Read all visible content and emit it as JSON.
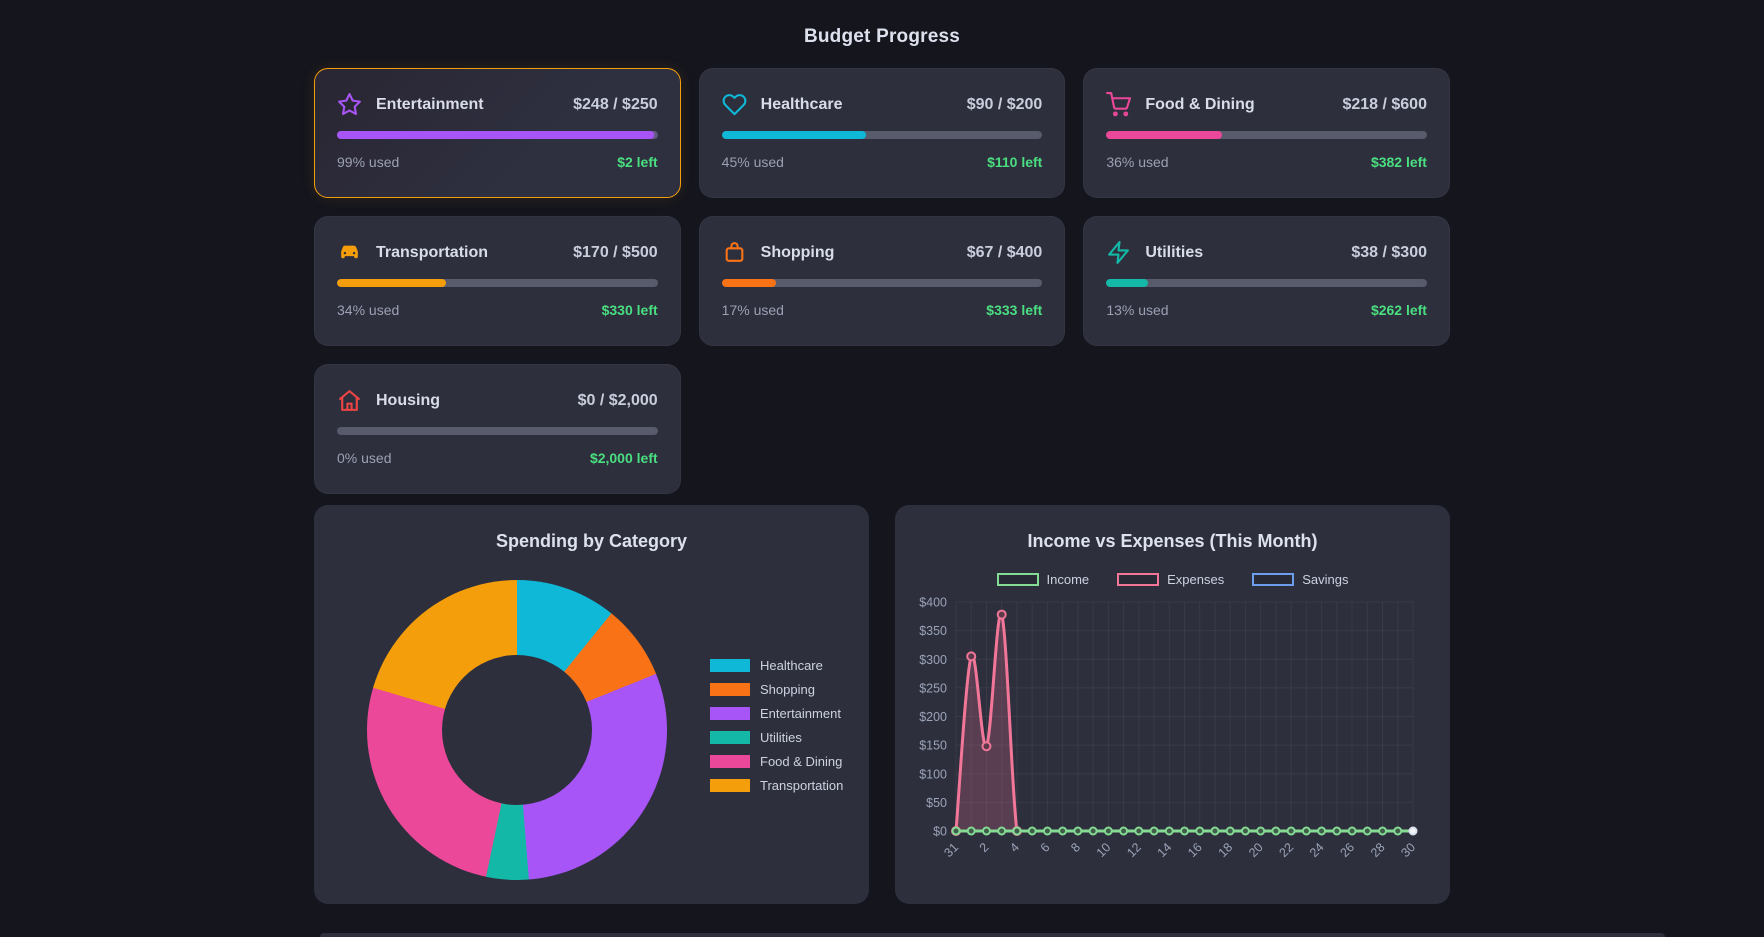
{
  "title": "Budget Progress",
  "ui": {
    "left_text_color": "#4ade80",
    "track_color": "#575b6c",
    "highlight_border_color": "#f59e0b",
    "card_background": "#2d2f3d",
    "page_background": "#14151d"
  },
  "cards": [
    {
      "name": "Entertainment",
      "icon": "star",
      "amount": "$248 / $250",
      "pct": 99,
      "used_label": "99% used",
      "left_label": "$2 left",
      "color": "#a855f7",
      "highlighted": true
    },
    {
      "name": "Healthcare",
      "icon": "heart",
      "amount": "$90 / $200",
      "pct": 45,
      "used_label": "45% used",
      "left_label": "$110 left",
      "color": "#0fb8d6",
      "highlighted": false
    },
    {
      "name": "Food & Dining",
      "icon": "shopping-cart",
      "amount": "$218 / $600",
      "pct": 36,
      "used_label": "36% used",
      "left_label": "$382 left",
      "color": "#ec4899",
      "highlighted": false
    },
    {
      "name": "Transportation",
      "icon": "car",
      "amount": "$170 / $500",
      "pct": 34,
      "used_label": "34% used",
      "left_label": "$330 left",
      "color": "#f59e0b",
      "highlighted": false
    },
    {
      "name": "Shopping",
      "icon": "shopping-bag",
      "amount": "$67 / $400",
      "pct": 17,
      "used_label": "17% used",
      "left_label": "$333 left",
      "color": "#f97316",
      "highlighted": false
    },
    {
      "name": "Utilities",
      "icon": "zap",
      "amount": "$38 / $300",
      "pct": 13,
      "used_label": "13% used",
      "left_label": "$262 left",
      "color": "#14b8a6",
      "highlighted": false
    },
    {
      "name": "Housing",
      "icon": "home",
      "amount": "$0 / $2,000",
      "pct": 0,
      "used_label": "0% used",
      "left_label": "$2,000 left",
      "color": "#ef4444",
      "highlighted": false
    }
  ],
  "chart_data": [
    {
      "type": "pie",
      "title": "Spending by Category",
      "donut": true,
      "legend_position": "right",
      "labels": [
        "Healthcare",
        "Shopping",
        "Entertainment",
        "Utilities",
        "Food & Dining",
        "Transportation"
      ],
      "values": [
        90,
        67,
        248,
        38,
        218,
        170
      ],
      "colors": [
        "#0fb8d6",
        "#f97316",
        "#a855f7",
        "#14b8a6",
        "#ec4899",
        "#f59e0b"
      ]
    },
    {
      "type": "line",
      "title": "Income vs Expenses (This Month)",
      "legend_position": "top",
      "grid": true,
      "ylim": [
        0,
        400
      ],
      "ytick_step": 50,
      "ytick_prefix": "$",
      "x": [
        "31",
        "1",
        "2",
        "3",
        "4",
        "5",
        "6",
        "7",
        "8",
        "9",
        "10",
        "11",
        "12",
        "13",
        "14",
        "15",
        "16",
        "17",
        "18",
        "19",
        "20",
        "21",
        "22",
        "23",
        "24",
        "25",
        "26",
        "27",
        "28",
        "29",
        "30"
      ],
      "x_ticks_every": 2,
      "series": [
        {
          "name": "Income",
          "color": "#86db94",
          "fill": false,
          "values": [
            0,
            0,
            0,
            0,
            0,
            0,
            0,
            0,
            0,
            0,
            0,
            0,
            0,
            0,
            0,
            0,
            0,
            0,
            0,
            0,
            0,
            0,
            0,
            0,
            0,
            0,
            0,
            0,
            0,
            0,
            0
          ]
        },
        {
          "name": "Expenses",
          "color": "#f27698",
          "fill": true,
          "values": [
            0,
            305,
            148,
            378,
            0,
            0,
            0,
            0,
            0,
            0,
            0,
            0,
            0,
            0,
            0,
            0,
            0,
            0,
            0,
            0,
            0,
            0,
            0,
            0,
            0,
            0,
            0,
            0,
            0,
            0,
            0
          ]
        },
        {
          "name": "Savings",
          "color": "#6d9eeb",
          "fill": false,
          "values": [
            0,
            0,
            0,
            0,
            0,
            0,
            0,
            0,
            0,
            0,
            0,
            0,
            0,
            0,
            0,
            0,
            0,
            0,
            0,
            0,
            0,
            0,
            0,
            0,
            0,
            0,
            0,
            0,
            0,
            0,
            0
          ]
        }
      ]
    }
  ]
}
